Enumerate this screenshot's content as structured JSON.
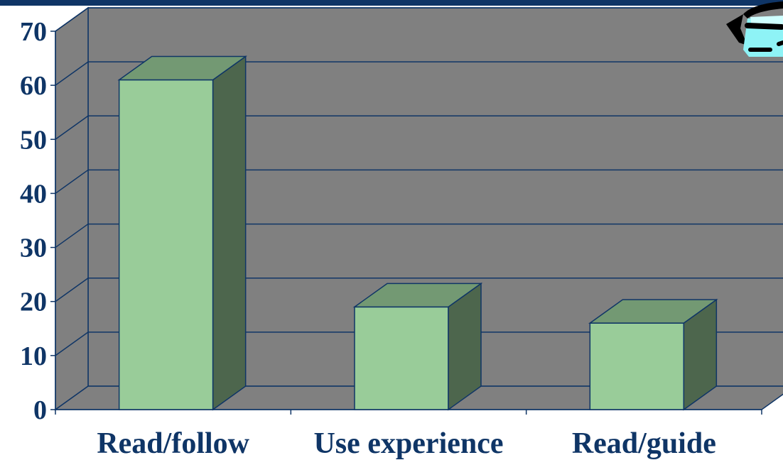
{
  "chart_data": {
    "type": "bar",
    "categories": [
      "Read/follow",
      "Use experience",
      "Read/guide"
    ],
    "values": [
      61,
      19,
      16
    ],
    "ylim": [
      0,
      70
    ],
    "yticks": [
      "0",
      "10",
      "20",
      "30",
      "40",
      "50",
      "60",
      "70"
    ],
    "grid": true,
    "legend": "none",
    "colors": {
      "bar_front": "#99cc99",
      "bar_top": "#739973",
      "bar_side": "#4d664d",
      "wall": "#808080",
      "floor": "#808080",
      "gridline": "#0f3566",
      "text": "#0f3566",
      "top_bar": "#0f3566"
    }
  },
  "decoration": {
    "corner_icon": "cartoon-eye-icon"
  }
}
